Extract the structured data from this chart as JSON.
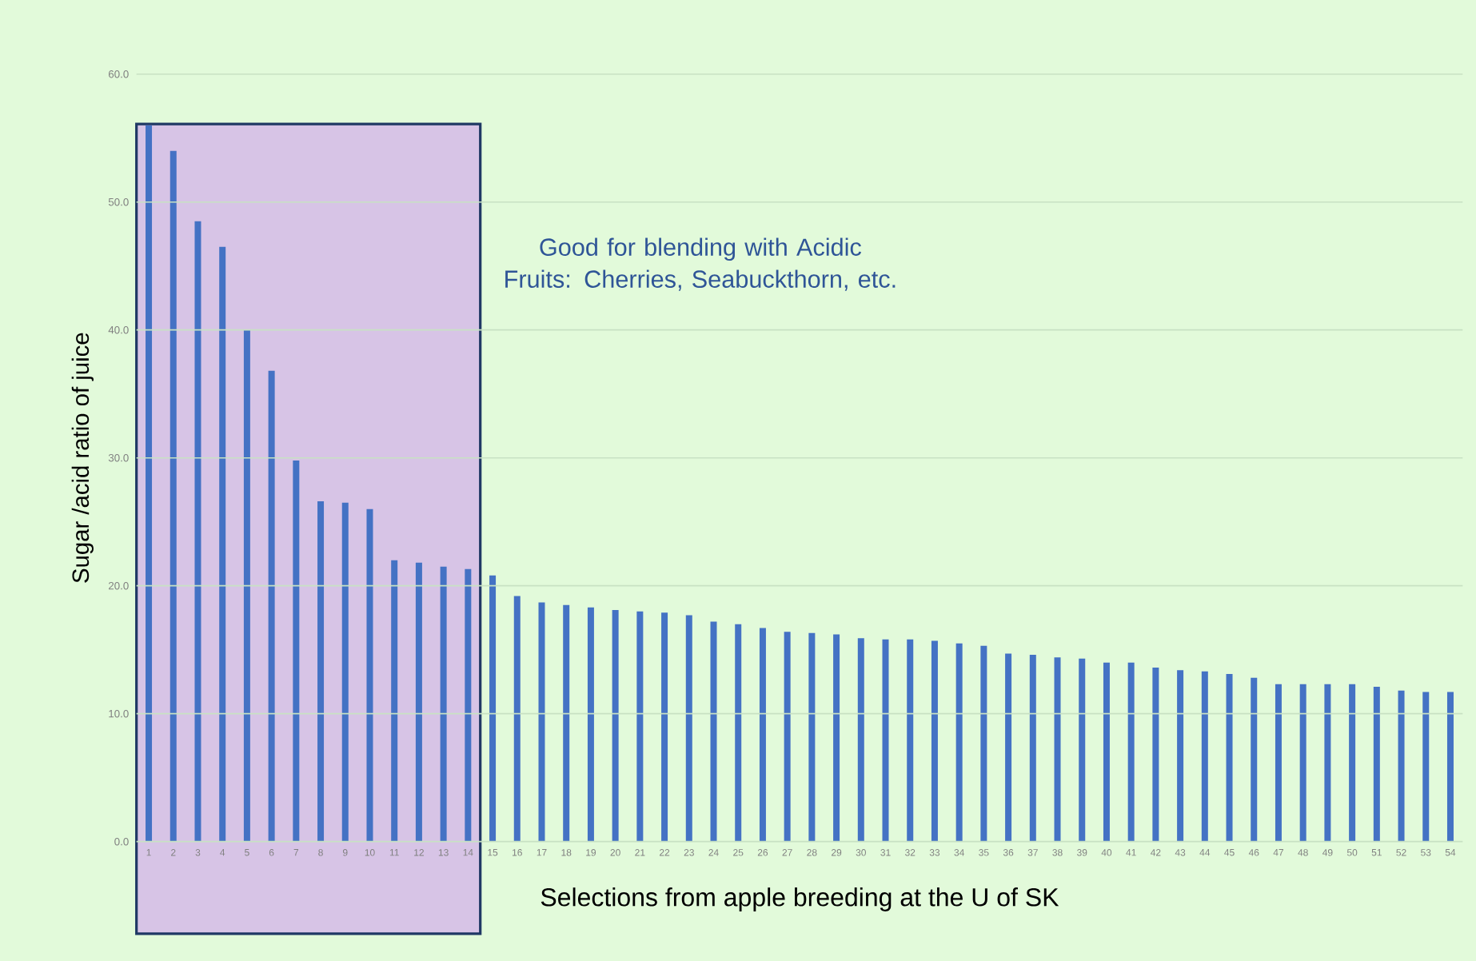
{
  "chart_data": {
    "type": "bar",
    "xlabel": "Selections from apple breeding at the U of SK",
    "ylabel": "Sugar /acid ratio of juice",
    "x": [
      1,
      2,
      3,
      4,
      5,
      6,
      7,
      8,
      9,
      10,
      11,
      12,
      13,
      14,
      15,
      16,
      17,
      18,
      19,
      20,
      21,
      22,
      23,
      24,
      25,
      26,
      27,
      28,
      29,
      30,
      31,
      32,
      33,
      34,
      35,
      36,
      37,
      38,
      39,
      40,
      41,
      42,
      43,
      44,
      45,
      46,
      47,
      48,
      49,
      50,
      51,
      52,
      53,
      54
    ],
    "values": [
      56.0,
      54.0,
      48.5,
      46.5,
      40.0,
      36.8,
      29.8,
      26.6,
      26.5,
      26.0,
      22.0,
      21.8,
      21.5,
      21.3,
      20.8,
      19.2,
      18.7,
      18.5,
      18.3,
      18.1,
      18.0,
      17.9,
      17.7,
      17.2,
      17.0,
      16.7,
      16.4,
      16.3,
      16.2,
      15.9,
      15.8,
      15.8,
      15.7,
      15.5,
      15.3,
      14.7,
      14.6,
      14.4,
      14.3,
      14.0,
      14.0,
      13.6,
      13.4,
      13.3,
      13.1,
      12.8,
      12.3,
      12.3,
      12.3,
      12.3,
      12.1,
      11.8,
      11.7,
      11.7
    ],
    "color": "#4472c4",
    "xlim": [
      0.5,
      54.5
    ],
    "xticks": [
      1,
      2,
      3,
      4,
      5,
      6,
      7,
      8,
      9,
      10,
      11,
      12,
      13,
      14,
      15,
      16,
      17,
      18,
      19,
      20,
      21,
      22,
      23,
      24,
      25,
      26,
      27,
      28,
      29,
      30,
      31,
      32,
      33,
      34,
      35,
      36,
      37,
      38,
      39,
      40,
      41,
      42,
      43,
      44,
      45,
      46,
      47,
      48,
      49,
      50,
      51,
      52,
      53,
      54
    ],
    "ylim": [
      0,
      60
    ],
    "yticks": [
      {
        "value": 0,
        "label": "0.0"
      },
      {
        "value": 10,
        "label": "10.0"
      },
      {
        "value": 20,
        "label": "20.0"
      },
      {
        "value": 30,
        "label": "30.0"
      },
      {
        "value": 40,
        "label": "40.0"
      },
      {
        "value": 50,
        "label": "50.0"
      },
      {
        "value": 60,
        "label": "60.0"
      }
    ],
    "grid": "y",
    "bands": [
      {
        "axis": "x",
        "from": 0.5,
        "to": 14.5,
        "label": "Good for blending with Acidic Fruits: Cherries, Seabuckthorn, etc.",
        "color": "#d7c4e6"
      }
    ]
  }
}
